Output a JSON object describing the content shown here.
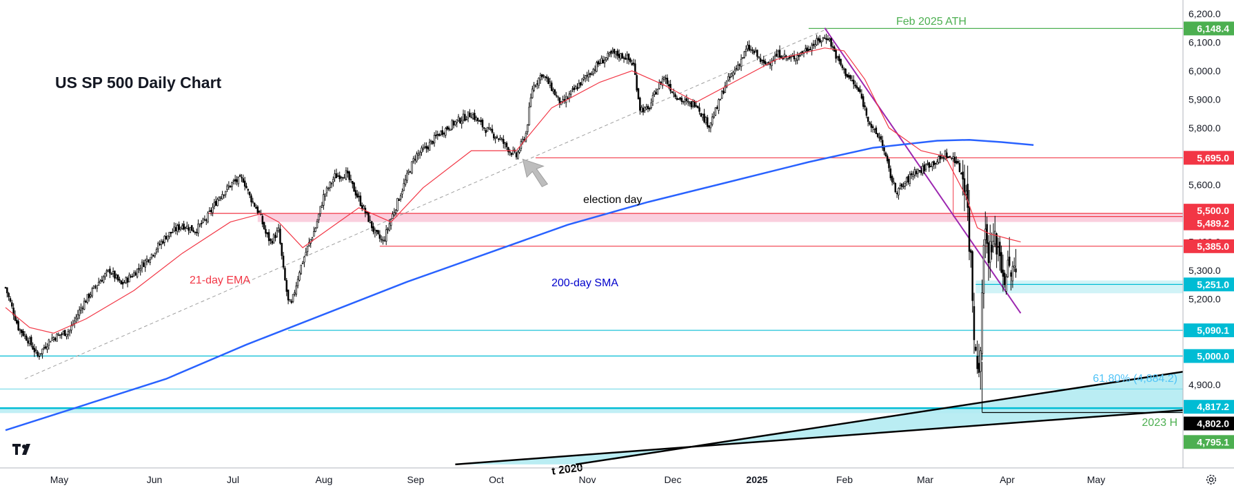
{
  "chart_data": {
    "type": "candlestick",
    "title": "US SP 500 Daily Chart",
    "x_labels": [
      "May",
      "Jun",
      "Jul",
      "Aug",
      "Sep",
      "Oct",
      "Nov",
      "Dec",
      "2025",
      "Feb",
      "Mar",
      "Apr",
      "May"
    ],
    "y_ticks": [
      "6,200.0",
      "6,100.0",
      "6,000.0",
      "5,900.0",
      "5,800.0",
      "5,700.0",
      "5,600.0",
      "5,500.0",
      "5,400.0",
      "5,300.0",
      "5,200.0",
      "5,100.0",
      "5,000.0",
      "4,900.0"
    ],
    "ylim": [
      4700,
      6230
    ],
    "price_labels": [
      {
        "text": "6,148.4",
        "value": 6148.4,
        "color": "#4caf50"
      },
      {
        "text": "5,695.0",
        "value": 5695.0,
        "color": "#f23645"
      },
      {
        "text": "5,500.0",
        "value": 5500.0,
        "color": "#f23645"
      },
      {
        "text": "5,489.2",
        "value": 5489.2,
        "color": "#f23645"
      },
      {
        "text": "5,385.0",
        "value": 5385.0,
        "color": "#f23645"
      },
      {
        "text": "5,251.0",
        "value": 5251.0,
        "color": "#00bcd4"
      },
      {
        "text": "5,090.1",
        "value": 5090.1,
        "color": "#00bcd4"
      },
      {
        "text": "5,000.0",
        "value": 5000.0,
        "color": "#00bcd4"
      },
      {
        "text": "4,817.2",
        "value": 4817.2,
        "color": "#00bcd4"
      },
      {
        "text": "4,802.0",
        "value": 4802.0,
        "color": "#000000"
      },
      {
        "text": "4,795.1",
        "value": 4795.1,
        "color": "#4caf50"
      }
    ],
    "annotations": {
      "ath": "Feb 2025 ATH",
      "election": "election day",
      "ema": "21-day EMA",
      "sma": "200-day SMA",
      "fib": "61.80% (4,884.2)",
      "h2023": "2023 H",
      "trend": "t 2020"
    },
    "indicators": [
      "21-day EMA",
      "200-day SMA"
    ],
    "colors": {
      "up": "#089981",
      "down": "#f23645",
      "candle": "#000000",
      "ema": "#f23645",
      "sma": "#2962ff",
      "support": "#00bcd4",
      "resistance": "#f23645",
      "ath": "#4caf50",
      "trendline": "#9c27b0"
    },
    "close_path": [
      [
        0,
        5240
      ],
      [
        8,
        5100
      ],
      [
        15,
        5050
      ],
      [
        20,
        5000
      ],
      [
        28,
        5060
      ],
      [
        40,
        5090
      ],
      [
        48,
        5180
      ],
      [
        58,
        5260
      ],
      [
        65,
        5300
      ],
      [
        72,
        5250
      ],
      [
        80,
        5290
      ],
      [
        90,
        5350
      ],
      [
        100,
        5420
      ],
      [
        110,
        5460
      ],
      [
        118,
        5440
      ],
      [
        125,
        5480
      ],
      [
        133,
        5560
      ],
      [
        142,
        5610
      ],
      [
        148,
        5620
      ],
      [
        152,
        5560
      ],
      [
        158,
        5500
      ],
      [
        162,
        5430
      ],
      [
        165,
        5400
      ],
      [
        170,
        5440
      ],
      [
        173,
        5300
      ],
      [
        176,
        5190
      ],
      [
        178,
        5180
      ],
      [
        183,
        5300
      ],
      [
        188,
        5380
      ],
      [
        193,
        5450
      ],
      [
        198,
        5560
      ],
      [
        205,
        5630
      ],
      [
        212,
        5640
      ],
      [
        220,
        5550
      ],
      [
        226,
        5480
      ],
      [
        230,
        5430
      ],
      [
        235,
        5400
      ],
      [
        240,
        5480
      ],
      [
        248,
        5600
      ],
      [
        255,
        5700
      ],
      [
        262,
        5730
      ],
      [
        270,
        5780
      ],
      [
        280,
        5820
      ],
      [
        290,
        5850
      ],
      [
        298,
        5800
      ],
      [
        303,
        5780
      ],
      [
        308,
        5760
      ],
      [
        314,
        5720
      ],
      [
        318,
        5700
      ],
      [
        324,
        5780
      ],
      [
        328,
        5940
      ],
      [
        334,
        5990
      ],
      [
        340,
        5940
      ],
      [
        346,
        5880
      ],
      [
        352,
        5920
      ],
      [
        360,
        5970
      ],
      [
        370,
        6030
      ],
      [
        378,
        6060
      ],
      [
        386,
        6050
      ],
      [
        391,
        6020
      ],
      [
        395,
        5870
      ],
      [
        400,
        5860
      ],
      [
        405,
        5930
      ],
      [
        410,
        5980
      ],
      [
        415,
        5930
      ],
      [
        420,
        5900
      ],
      [
        426,
        5880
      ],
      [
        430,
        5890
      ],
      [
        434,
        5840
      ],
      [
        438,
        5810
      ],
      [
        443,
        5870
      ],
      [
        448,
        5950
      ],
      [
        455,
        6010
      ],
      [
        462,
        6080
      ],
      [
        467,
        6060
      ],
      [
        472,
        6020
      ],
      [
        477,
        6040
      ],
      [
        482,
        6060
      ],
      [
        488,
        6040
      ],
      [
        495,
        6060
      ],
      [
        502,
        6090
      ],
      [
        508,
        6110
      ],
      [
        512,
        6120
      ],
      [
        518,
        6040
      ],
      [
        522,
        6000
      ],
      [
        526,
        5970
      ],
      [
        532,
        5920
      ],
      [
        536,
        5850
      ],
      [
        540,
        5790
      ],
      [
        545,
        5760
      ],
      [
        550,
        5650
      ],
      [
        554,
        5580
      ],
      [
        558,
        5590
      ],
      [
        562,
        5620
      ],
      [
        566,
        5650
      ],
      [
        570,
        5650
      ],
      [
        574,
        5670
      ],
      [
        578,
        5680
      ],
      [
        582,
        5690
      ],
      [
        585,
        5710
      ],
      [
        588,
        5690
      ],
      [
        590,
        5700
      ],
      [
        592,
        5680
      ],
      [
        595,
        5640
      ],
      [
        598,
        5600
      ],
      [
        600,
        5400
      ],
      [
        601,
        5340
      ],
      [
        603,
        5080
      ],
      [
        605,
        5000
      ],
      [
        607,
        4990
      ],
      [
        609,
        5440
      ],
      [
        611,
        5400
      ],
      [
        613,
        5360
      ],
      [
        615,
        5390
      ],
      [
        617,
        5400
      ],
      [
        619,
        5360
      ],
      [
        621,
        5290
      ],
      [
        623,
        5290
      ],
      [
        626,
        5300
      ],
      [
        629,
        5280
      ]
    ],
    "sma_path": [
      [
        0,
        4740
      ],
      [
        50,
        4830
      ],
      [
        100,
        4920
      ],
      [
        150,
        5040
      ],
      [
        200,
        5150
      ],
      [
        250,
        5260
      ],
      [
        300,
        5360
      ],
      [
        350,
        5460
      ],
      [
        400,
        5540
      ],
      [
        450,
        5610
      ],
      [
        500,
        5680
      ],
      [
        540,
        5730
      ],
      [
        580,
        5755
      ],
      [
        600,
        5758
      ],
      [
        620,
        5750
      ],
      [
        640,
        5740
      ]
    ],
    "ema_path": [
      [
        0,
        5170
      ],
      [
        15,
        5100
      ],
      [
        30,
        5080
      ],
      [
        50,
        5130
      ],
      [
        80,
        5230
      ],
      [
        110,
        5360
      ],
      [
        140,
        5470
      ],
      [
        160,
        5500
      ],
      [
        170,
        5470
      ],
      [
        185,
        5380
      ],
      [
        200,
        5440
      ],
      [
        220,
        5520
      ],
      [
        240,
        5470
      ],
      [
        260,
        5590
      ],
      [
        290,
        5720
      ],
      [
        318,
        5720
      ],
      [
        340,
        5870
      ],
      [
        370,
        5960
      ],
      [
        390,
        6000
      ],
      [
        410,
        5950
      ],
      [
        430,
        5890
      ],
      [
        450,
        5950
      ],
      [
        480,
        6040
      ],
      [
        510,
        6080
      ],
      [
        522,
        6070
      ],
      [
        535,
        5970
      ],
      [
        550,
        5800
      ],
      [
        570,
        5720
      ],
      [
        585,
        5700
      ],
      [
        598,
        5560
      ],
      [
        605,
        5450
      ],
      [
        612,
        5430
      ],
      [
        625,
        5410
      ],
      [
        632,
        5400
      ]
    ]
  },
  "ui": {
    "logo": "TV",
    "settings_icon": "gear-icon"
  }
}
